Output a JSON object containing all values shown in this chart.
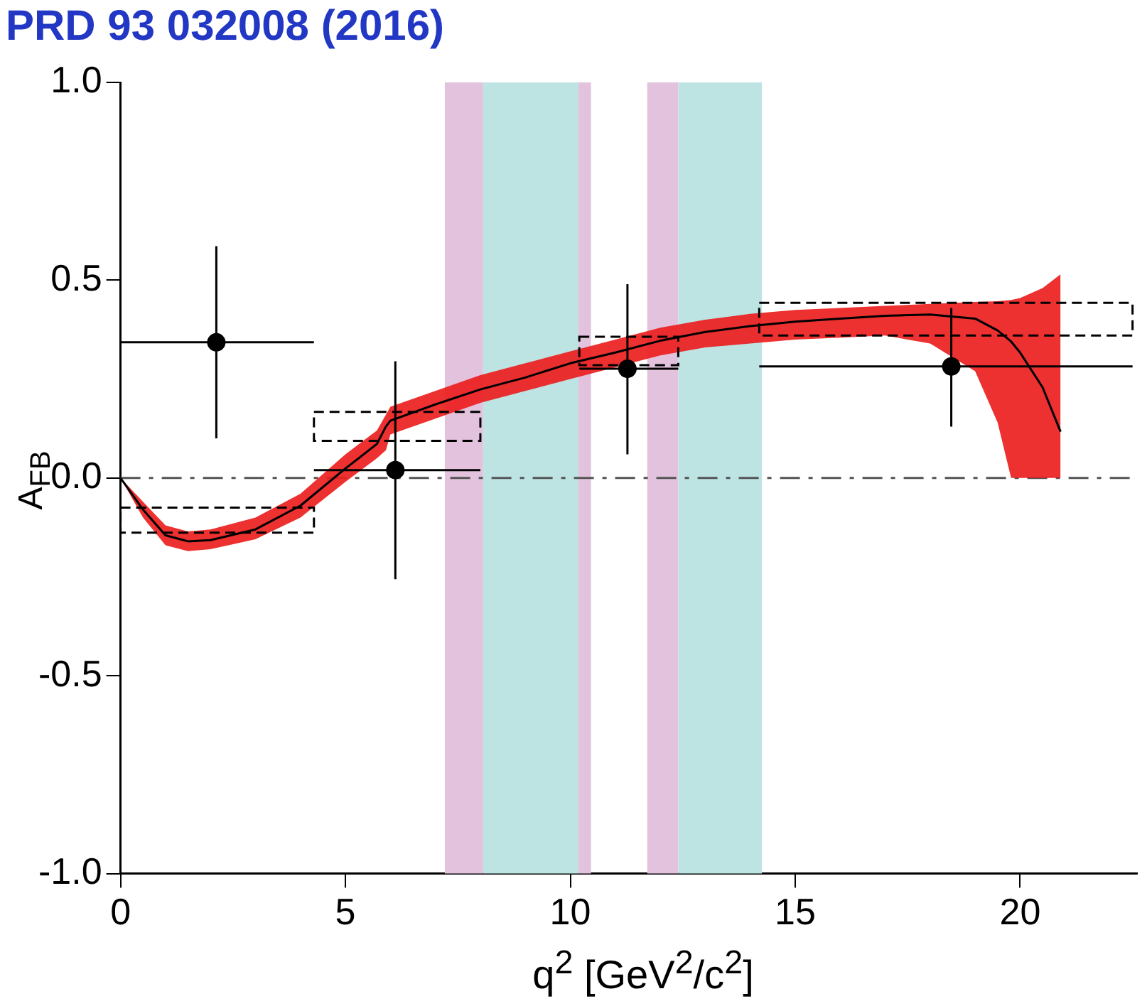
{
  "chart_data": {
    "type": "scatter",
    "title": "PRD 93 032008 (2016)",
    "xlabel": "q$^{2}$ [GeV$^{2}$/c$^{2}$]",
    "ylabel": "A$_{FB}$",
    "xlim": [
      0,
      22.6
    ],
    "xticks": [
      0,
      5,
      10,
      15,
      20
    ],
    "ylim": [
      -1,
      1
    ],
    "yticks": [
      {
        "value": -1,
        "label": "-1.0"
      },
      {
        "value": -0.5,
        "label": "-0.5"
      },
      {
        "value": 0,
        "label": "0.0"
      },
      {
        "value": 0.5,
        "label": "0.5"
      },
      {
        "value": 1,
        "label": "1.0"
      }
    ],
    "grid": false,
    "legend": false,
    "bands": [
      {
        "axis": "x",
        "from": 7.21,
        "to": 8.06,
        "color": "#e2c2dc"
      },
      {
        "axis": "x",
        "from": 8.06,
        "to": 10.18,
        "color": "#bde3e3"
      },
      {
        "axis": "x",
        "from": 10.18,
        "to": 10.46,
        "color": "#e2c2dc"
      },
      {
        "axis": "x",
        "from": 11.71,
        "to": 12.4,
        "color": "#e2c2dc"
      },
      {
        "axis": "x",
        "from": 12.4,
        "to": 14.26,
        "color": "#bde3e3"
      }
    ],
    "ref_lines": [
      {
        "axis": "y",
        "value": 0,
        "color": "#555555",
        "line_style": "dashed"
      }
    ],
    "series": [
      {
        "type": "line",
        "color": "#000000",
        "line_style": "solid",
        "x": [
          0,
          0.5,
          1,
          1.5,
          2,
          3,
          4,
          5,
          5.7,
          5.9,
          6,
          7,
          8,
          9,
          10,
          11,
          12,
          13,
          14,
          15,
          16,
          17,
          18,
          19,
          19.5,
          19.8,
          20,
          20.5,
          20.9
        ],
        "values": [
          0,
          -0.08,
          -0.145,
          -0.16,
          -0.157,
          -0.13,
          -0.07,
          0.024,
          0.086,
          0.13,
          0.145,
          0.186,
          0.224,
          0.254,
          0.29,
          0.317,
          0.347,
          0.369,
          0.384,
          0.395,
          0.403,
          0.41,
          0.413,
          0.403,
          0.373,
          0.345,
          0.317,
          0.229,
          0.117
        ],
        "lower": [
          0,
          -0.1,
          -0.17,
          -0.185,
          -0.18,
          -0.155,
          -0.1,
          -0.01,
          0.05,
          0.07,
          0.11,
          0.15,
          0.19,
          0.22,
          0.25,
          0.28,
          0.31,
          0.33,
          0.34,
          0.35,
          0.355,
          0.36,
          0.34,
          0.27,
          0.14,
          0.0,
          0.0,
          0.0,
          0.0
        ],
        "upper": [
          0,
          -0.06,
          -0.12,
          -0.135,
          -0.13,
          -0.1,
          -0.04,
          0.06,
          0.12,
          0.16,
          0.18,
          0.22,
          0.26,
          0.29,
          0.32,
          0.35,
          0.38,
          0.4,
          0.415,
          0.425,
          0.43,
          0.435,
          0.44,
          0.445,
          0.447,
          0.45,
          0.455,
          0.48,
          0.515
        ]
      },
      {
        "type": "histogram",
        "color": "#000000",
        "line_style": "dashed",
        "bins": [
          0,
          4.3,
          8.0,
          10.2,
          12.4,
          14.2,
          22.5
        ],
        "base": [
          -0.138,
          0.094,
          null,
          0.285,
          null,
          0.36
        ],
        "values": [
          0.063,
          0.073,
          null,
          0.072,
          null,
          0.083
        ]
      },
      {
        "color": "#000000",
        "marker": "circle",
        "x": [
          2.13,
          6.11,
          11.27,
          18.47
        ],
        "values": [
          0.343,
          0.02,
          0.276,
          0.282
        ],
        "errors": [
          [
            0.1,
            0.586
          ],
          [
            -0.256,
            0.295
          ],
          [
            0.06,
            0.49
          ],
          [
            0.13,
            0.43
          ]
        ],
        "xerrors": [
          [
            0,
            4.3
          ],
          [
            4.3,
            8.0
          ],
          [
            10.2,
            12.4
          ],
          [
            14.2,
            22.5
          ]
        ]
      }
    ]
  }
}
